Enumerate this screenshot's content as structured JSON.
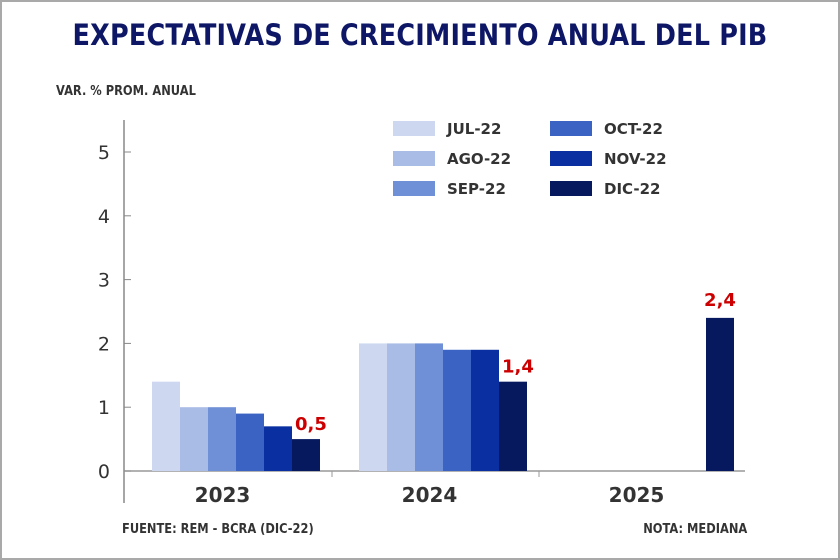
{
  "chart_data": {
    "type": "bar",
    "title": "EXPECTATIVAS DE CRECIMIENTO ANUAL DEL PIB",
    "ylabel": "VAR. % PROM. ANUAL",
    "xlabel": "",
    "ylim": [
      0,
      5
    ],
    "yticks": [
      "0",
      "1",
      "2",
      "3",
      "4",
      "5"
    ],
    "grid": false,
    "legend_position": "top-right",
    "categories": [
      "2023",
      "2024",
      "2025"
    ],
    "series": [
      {
        "name": "JUL-22",
        "color": "#cdd8f0",
        "values": [
          1.4,
          2.0,
          null
        ]
      },
      {
        "name": "AGO-22",
        "color": "#a9bce6",
        "values": [
          1.0,
          2.0,
          null
        ]
      },
      {
        "name": "SEP-22",
        "color": "#6f8fd6",
        "values": [
          1.0,
          2.0,
          null
        ]
      },
      {
        "name": "OCT-22",
        "color": "#3a63c4",
        "values": [
          0.9,
          1.9,
          null
        ]
      },
      {
        "name": "NOV-22",
        "color": "#0a2fa0",
        "values": [
          0.7,
          1.9,
          null
        ]
      },
      {
        "name": "DIC-22",
        "color": "#06185e",
        "values": [
          0.5,
          1.4,
          2.4
        ]
      }
    ],
    "data_labels": [
      {
        "category": "2023",
        "series": "DIC-22",
        "text": "0,5"
      },
      {
        "category": "2024",
        "series": "DIC-22",
        "text": "1,4"
      },
      {
        "category": "2025",
        "series": "DIC-22",
        "text": "2,4"
      }
    ],
    "data_label_color": "#cc0000",
    "source": "FUENTE: REM - BCRA (DIC-22)",
    "note": "NOTA: MEDIANA"
  }
}
